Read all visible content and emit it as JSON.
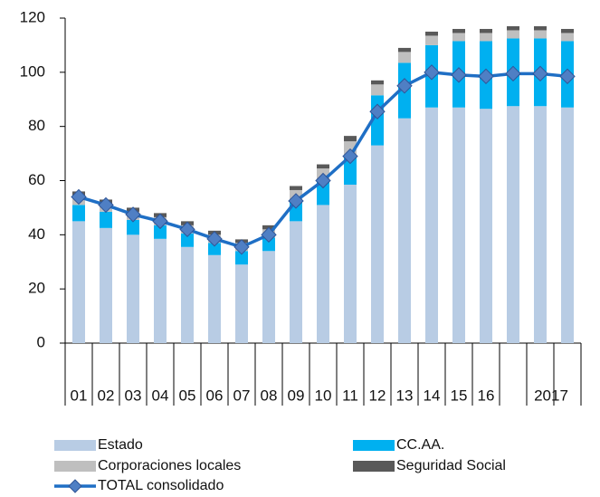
{
  "chart_data": {
    "type": "stacked-bar-line",
    "categories": [
      "01",
      "02",
      "03",
      "04",
      "05",
      "06",
      "07",
      "08",
      "09",
      "10",
      "11",
      "12",
      "13",
      "14",
      "15",
      "16",
      null,
      "2017",
      null
    ],
    "series": [
      {
        "name": "Estado",
        "color": "#b8cce4",
        "values": [
          45,
          42.5,
          40,
          38.5,
          35.5,
          32.5,
          29,
          34,
          45,
          51,
          58.5,
          73,
          83,
          87,
          87,
          86.5,
          87.5,
          87.5,
          87
        ]
      },
      {
        "name": "CC.AA.",
        "color": "#00b0f0",
        "values": [
          6,
          6,
          5.5,
          5,
          5,
          4.5,
          5,
          5,
          7.5,
          8.5,
          10.5,
          18.5,
          20.5,
          23,
          24.5,
          25,
          25,
          25,
          24.5
        ]
      },
      {
        "name": "Corporaciones locales",
        "color": "#bfbfbf",
        "values": [
          3.5,
          3,
          3,
          3,
          3,
          3,
          3,
          3,
          4,
          5,
          5.5,
          4,
          4,
          3.5,
          3,
          3,
          3,
          3,
          3
        ]
      },
      {
        "name": "Seguridad Social",
        "color": "#595959",
        "values": [
          1.5,
          1.5,
          1.5,
          1.5,
          1.5,
          1.5,
          1.3,
          1.5,
          1.5,
          1.5,
          2,
          1.5,
          1.5,
          1.5,
          1.5,
          1.5,
          1.5,
          1.5,
          1.5
        ]
      }
    ],
    "line": {
      "name": "TOTAL consolidado",
      "color": "#1f6fc5",
      "marker_color": "#4f7fc4",
      "values": [
        54,
        51,
        47.5,
        45,
        42,
        38.5,
        35.5,
        40,
        52.5,
        60,
        69,
        85.5,
        95,
        100,
        99,
        98.5,
        99.5,
        99.5,
        98.5
      ]
    },
    "ylim": [
      0,
      120
    ],
    "yticks": [
      0,
      20,
      40,
      60,
      80,
      100,
      120
    ]
  }
}
